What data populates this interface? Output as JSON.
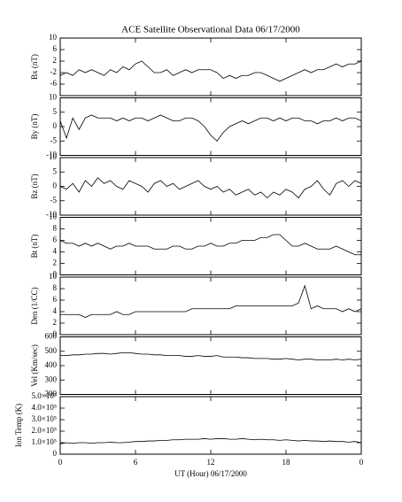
{
  "chart_data": [
    {
      "type": "line",
      "title": "ACE Satellite Observational Data  06/17/2000",
      "ylabel": "Bx (nT)",
      "color": "#000000",
      "x": [
        0,
        0.5,
        1,
        1.5,
        2,
        2.5,
        3,
        3.5,
        4,
        4.5,
        5,
        5.5,
        6,
        6.5,
        7,
        7.5,
        8,
        8.5,
        9,
        9.5,
        10,
        10.5,
        11,
        11.5,
        12,
        12.5,
        13,
        13.5,
        14,
        14.5,
        15,
        15.5,
        16,
        16.5,
        17,
        17.5,
        18,
        18.5,
        19,
        19.5,
        20,
        20.5,
        21,
        21.5,
        22,
        22.5,
        23,
        23.5,
        24
      ],
      "values": [
        -3,
        -2,
        -3,
        -1,
        -2,
        -1,
        -2,
        -3,
        -1,
        -2,
        0,
        -1,
        1,
        2,
        0,
        -2,
        -2,
        -1,
        -3,
        -2,
        -1,
        -2,
        -1,
        -1,
        -1,
        -2,
        -4,
        -3,
        -4,
        -3,
        -3,
        -2,
        -2,
        -3,
        -4,
        -5,
        -4,
        -3,
        -2,
        -1,
        -2,
        -1,
        -1,
        0,
        1,
        0,
        1,
        1,
        2
      ],
      "ylim": [
        -10,
        10
      ],
      "yticks": [
        -6,
        -2,
        2,
        6,
        10
      ]
    },
    {
      "type": "line",
      "ylabel": "By (nT)",
      "color": "#000000",
      "x": [
        0,
        0.5,
        1,
        1.5,
        2,
        2.5,
        3,
        3.5,
        4,
        4.5,
        5,
        5.5,
        6,
        6.5,
        7,
        7.5,
        8,
        8.5,
        9,
        9.5,
        10,
        10.5,
        11,
        11.5,
        12,
        12.5,
        13,
        13.5,
        14,
        14.5,
        15,
        15.5,
        16,
        16.5,
        17,
        17.5,
        18,
        18.5,
        19,
        19.5,
        20,
        20.5,
        21,
        21.5,
        22,
        22.5,
        23,
        23.5,
        24
      ],
      "values": [
        2,
        -4,
        3,
        -1,
        3,
        4,
        3,
        3,
        3,
        2,
        3,
        2,
        3,
        3,
        2,
        3,
        4,
        3,
        2,
        2,
        3,
        3,
        2,
        0,
        -3,
        -5,
        -2,
        0,
        1,
        2,
        1,
        2,
        3,
        3,
        2,
        3,
        2,
        3,
        3,
        2,
        2,
        1,
        2,
        2,
        3,
        2,
        3,
        3,
        2
      ],
      "ylim": [
        -10,
        10
      ],
      "yticks": [
        -10,
        -5,
        0,
        5,
        10
      ]
    },
    {
      "type": "line",
      "ylabel": "Bz (nT)",
      "color": "#000000",
      "x": [
        0,
        0.5,
        1,
        1.5,
        2,
        2.5,
        3,
        3.5,
        4,
        4.5,
        5,
        5.5,
        6,
        6.5,
        7,
        7.5,
        8,
        8.5,
        9,
        9.5,
        10,
        10.5,
        11,
        11.5,
        12,
        12.5,
        13,
        13.5,
        14,
        14.5,
        15,
        15.5,
        16,
        16.5,
        17,
        17.5,
        18,
        18.5,
        19,
        19.5,
        20,
        20.5,
        21,
        21.5,
        22,
        22.5,
        23,
        23.5,
        24
      ],
      "values": [
        0,
        -1,
        1,
        -2,
        2,
        0,
        3,
        1,
        2,
        0,
        -1,
        2,
        1,
        0,
        -2,
        1,
        2,
        0,
        1,
        -1,
        0,
        1,
        2,
        0,
        -1,
        0,
        -2,
        -1,
        -3,
        -2,
        -1,
        -3,
        -2,
        -4,
        -2,
        -3,
        -1,
        -2,
        -4,
        -1,
        0,
        2,
        -1,
        -3,
        1,
        2,
        0,
        2,
        1
      ],
      "ylim": [
        -10,
        10
      ],
      "yticks": [
        -10,
        -5,
        0,
        5,
        10
      ]
    },
    {
      "type": "line",
      "ylabel": "Bt (nT)",
      "color": "#000000",
      "x": [
        0,
        0.5,
        1,
        1.5,
        2,
        2.5,
        3,
        3.5,
        4,
        4.5,
        5,
        5.5,
        6,
        6.5,
        7,
        7.5,
        8,
        8.5,
        9,
        9.5,
        10,
        10.5,
        11,
        11.5,
        12,
        12.5,
        13,
        13.5,
        14,
        14.5,
        15,
        15.5,
        16,
        16.5,
        17,
        17.5,
        18,
        18.5,
        19,
        19.5,
        20,
        20.5,
        21,
        21.5,
        22,
        22.5,
        23,
        23.5,
        24
      ],
      "values": [
        6,
        5.5,
        5.5,
        5,
        5.5,
        5,
        5.5,
        5,
        4.5,
        5,
        5,
        5.5,
        5,
        5,
        5,
        4.5,
        4.5,
        4.5,
        5,
        5,
        4.5,
        4.5,
        5,
        5,
        5.5,
        5,
        5,
        5.5,
        5.5,
        6,
        6,
        6,
        6.5,
        6.5,
        7,
        7,
        6,
        5,
        5,
        5.5,
        5,
        4.5,
        4.5,
        4.5,
        5,
        4.5,
        4,
        3.5,
        3.5
      ],
      "ylim": [
        0,
        10
      ],
      "yticks": [
        0,
        2,
        4,
        6,
        8,
        10
      ]
    },
    {
      "type": "line",
      "ylabel": "Den (1/CC)",
      "color": "#000000",
      "x": [
        0,
        0.5,
        1,
        1.5,
        2,
        2.5,
        3,
        3.5,
        4,
        4.5,
        5,
        5.5,
        6,
        6.5,
        7,
        7.5,
        8,
        8.5,
        9,
        9.5,
        10,
        10.5,
        11,
        11.5,
        12,
        12.5,
        13,
        13.5,
        14,
        14.5,
        15,
        15.5,
        16,
        16.5,
        17,
        17.5,
        18,
        18.5,
        19,
        19.5,
        20,
        20.5,
        21,
        21.5,
        22,
        22.5,
        23,
        23.5,
        24
      ],
      "values": [
        3.5,
        3.5,
        3.5,
        3.5,
        3,
        3.5,
        3.5,
        3.5,
        3.5,
        4,
        3.5,
        3.5,
        4,
        4,
        4,
        4,
        4,
        4,
        4,
        4,
        4,
        4.5,
        4.5,
        4.5,
        4.5,
        4.5,
        4.5,
        4.5,
        5,
        5,
        5,
        5,
        5,
        5,
        5,
        5,
        5,
        5,
        5.5,
        8.5,
        4.5,
        5,
        4.5,
        4.5,
        4.5,
        4,
        4.5,
        4,
        4.5
      ],
      "ylim": [
        0,
        10
      ],
      "yticks": [
        0,
        2,
        4,
        6,
        8,
        10
      ]
    },
    {
      "type": "line",
      "ylabel": "Vel (Km/sec)",
      "color": "#000000",
      "x": [
        0,
        0.5,
        1,
        1.5,
        2,
        2.5,
        3,
        3.5,
        4,
        4.5,
        5,
        5.5,
        6,
        6.5,
        7,
        7.5,
        8,
        8.5,
        9,
        9.5,
        10,
        10.5,
        11,
        11.5,
        12,
        12.5,
        13,
        13.5,
        14,
        14.5,
        15,
        15.5,
        16,
        16.5,
        17,
        17.5,
        18,
        18.5,
        19,
        19.5,
        20,
        20.5,
        21,
        21.5,
        22,
        22.5,
        23,
        23.5,
        24
      ],
      "values": [
        470,
        470,
        475,
        475,
        480,
        480,
        485,
        485,
        480,
        485,
        490,
        490,
        485,
        480,
        480,
        475,
        475,
        470,
        470,
        470,
        465,
        465,
        470,
        465,
        465,
        470,
        460,
        460,
        460,
        455,
        455,
        450,
        450,
        450,
        445,
        445,
        450,
        445,
        440,
        445,
        445,
        440,
        440,
        440,
        445,
        440,
        445,
        440,
        445
      ],
      "ylim": [
        200,
        600
      ],
      "yticks": [
        200,
        300,
        400,
        500,
        600
      ]
    },
    {
      "type": "line",
      "ylabel": "Ion Temp (K)",
      "xlabel": "UT (Hour)  06/17/2000",
      "color": "#000000",
      "x": [
        0,
        0.5,
        1,
        1.5,
        2,
        2.5,
        3,
        3.5,
        4,
        4.5,
        5,
        5.5,
        6,
        6.5,
        7,
        7.5,
        8,
        8.5,
        9,
        9.5,
        10,
        10.5,
        11,
        11.5,
        12,
        12.5,
        13,
        13.5,
        14,
        14.5,
        15,
        15.5,
        16,
        16.5,
        17,
        17.5,
        18,
        18.5,
        19,
        19.5,
        20,
        20.5,
        21,
        21.5,
        22,
        22.5,
        23,
        23.5,
        24
      ],
      "values": [
        90000,
        100000,
        95000,
        100000,
        100000,
        95000,
        100000,
        100000,
        105000,
        100000,
        100000,
        105000,
        110000,
        110000,
        115000,
        115000,
        120000,
        120000,
        125000,
        125000,
        130000,
        130000,
        130000,
        135000,
        130000,
        135000,
        135000,
        130000,
        130000,
        135000,
        130000,
        125000,
        130000,
        125000,
        125000,
        120000,
        125000,
        120000,
        115000,
        120000,
        115000,
        115000,
        110000,
        115000,
        110000,
        110000,
        105000,
        110000,
        100000
      ],
      "ylim": [
        0,
        500000
      ],
      "yticks": [
        0,
        {
          "value": 100000,
          "label": "1.0×10⁵"
        },
        {
          "value": 200000,
          "label": "2.0×10⁵"
        },
        {
          "value": 300000,
          "label": "3.0×10⁵"
        },
        {
          "value": 400000,
          "label": "4.0×10⁵"
        },
        {
          "value": 500000,
          "label": "5.0×10⁵"
        }
      ],
      "xlim": [
        0,
        24
      ],
      "xticks": [
        0,
        6,
        12,
        18,
        {
          "value": 24,
          "label": "0"
        }
      ]
    }
  ]
}
